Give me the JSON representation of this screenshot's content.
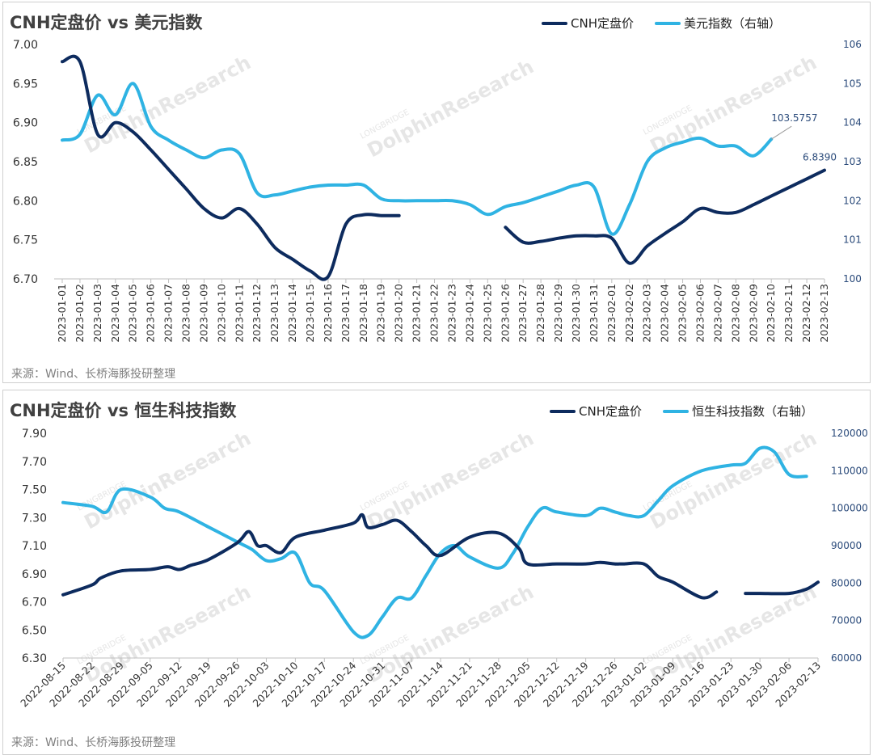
{
  "colors": {
    "cnh": "#0d2b5e",
    "index": "#2fb3e3",
    "axis_right": "#2a4a7a"
  },
  "watermark": {
    "main": "DolphinResearch",
    "small": "LONGBRIDGE"
  },
  "chart_data": [
    {
      "type": "line",
      "title": "CNH定盘价 vs 美元指数",
      "source": "来源：Wind、长桥海豚投研整理",
      "legend": {
        "placement": "top-right",
        "entries": [
          "CNH定盘价",
          "美元指数（右轴）"
        ]
      },
      "grid": false,
      "left_axis": {
        "ylim": [
          6.7,
          7.0
        ],
        "ticks": [
          "6.70",
          "6.75",
          "6.80",
          "6.85",
          "6.90",
          "6.95",
          "7.00"
        ]
      },
      "right_axis": {
        "ylim": [
          100,
          106
        ],
        "ticks": [
          "100",
          "101",
          "102",
          "103",
          "104",
          "105",
          "106"
        ]
      },
      "x_categories": [
        "2023-01-01",
        "2023-01-02",
        "2023-01-03",
        "2023-01-04",
        "2023-01-05",
        "2023-01-06",
        "2023-01-07",
        "2023-01-08",
        "2023-01-09",
        "2023-01-10",
        "2023-01-11",
        "2023-01-12",
        "2023-01-13",
        "2023-01-14",
        "2023-01-15",
        "2023-01-16",
        "2023-01-17",
        "2023-01-18",
        "2023-01-19",
        "2023-01-20",
        "2023-01-21",
        "2023-01-22",
        "2023-01-23",
        "2023-01-24",
        "2023-01-25",
        "2023-01-26",
        "2023-01-27",
        "2023-01-28",
        "2023-01-29",
        "2023-01-30",
        "2023-01-31",
        "2023-02-01",
        "2023-02-02",
        "2023-02-03",
        "2023-02-04",
        "2023-02-05",
        "2023-02-06",
        "2023-02-07",
        "2023-02-08",
        "2023-02-09",
        "2023-02-10",
        "2023-02-11",
        "2023-02-12",
        "2023-02-13"
      ],
      "series": [
        {
          "name": "CNH定盘价",
          "axis": "left",
          "color_key": "cnh",
          "values": [
            6.978,
            6.978,
            6.885,
            6.9,
            6.888,
            6.865,
            6.84,
            6.815,
            6.79,
            6.778,
            6.79,
            6.77,
            6.74,
            6.725,
            6.71,
            6.703,
            6.77,
            6.782,
            6.781,
            6.781,
            null,
            null,
            null,
            null,
            null,
            6.766,
            6.747,
            6.748,
            6.752,
            6.755,
            6.755,
            6.752,
            6.72,
            6.742,
            6.758,
            6.773,
            6.79,
            6.785,
            6.785,
            6.795,
            6.806,
            6.817,
            6.828,
            6.839
          ],
          "end_label": "6.8390"
        },
        {
          "name": "美元指数（右轴）",
          "axis": "right",
          "color_key": "index",
          "values": [
            103.55,
            103.7,
            104.7,
            104.2,
            105.0,
            103.9,
            103.55,
            103.3,
            103.1,
            103.3,
            103.2,
            102.2,
            102.15,
            102.25,
            102.35,
            102.4,
            102.4,
            102.4,
            102.05,
            102.0,
            102.0,
            102.0,
            102.0,
            101.9,
            101.65,
            101.85,
            101.95,
            102.1,
            102.25,
            102.4,
            102.35,
            101.15,
            101.9,
            103.0,
            103.35,
            103.5,
            103.6,
            103.4,
            103.4,
            103.15,
            103.5757,
            null,
            null,
            null
          ],
          "end_label": "103.5757"
        }
      ]
    },
    {
      "type": "line",
      "title": "CNH定盘价 vs 恒生科技指数",
      "source": "来源：Wind、长桥海豚投研整理",
      "legend": {
        "placement": "top-right",
        "entries": [
          "CNH定盘价",
          "恒生科技指数（右轴）"
        ]
      },
      "grid": false,
      "left_axis": {
        "ylim": [
          6.3,
          7.9
        ],
        "ticks": [
          "6.30",
          "6.50",
          "6.70",
          "6.90",
          "7.10",
          "7.30",
          "7.50",
          "7.70",
          "7.90"
        ]
      },
      "right_axis": {
        "ylim": [
          60000,
          120000
        ],
        "ticks": [
          "60000",
          "70000",
          "80000",
          "90000",
          "100000",
          "110000",
          "120000"
        ]
      },
      "x_ticks": [
        "2022-08-15",
        "2022-08-22",
        "2022-08-29",
        "2022-09-05",
        "2022-09-12",
        "2022-09-19",
        "2022-09-26",
        "2022-10-03",
        "2022-10-10",
        "2022-10-17",
        "2022-10-24",
        "2022-10-31",
        "2022-11-07",
        "2022-11-14",
        "2022-11-21",
        "2022-11-28",
        "2022-12-05",
        "2022-12-12",
        "2022-12-19",
        "2022-12-26",
        "2023-01-02",
        "2023-01-09",
        "2023-01-16",
        "2023-01-23",
        "2023-01-30",
        "2023-02-06",
        "2023-02-13"
      ],
      "series": [
        {
          "name": "CNH定盘价",
          "axis": "left",
          "color_key": "cnh",
          "weeks": [
            0,
            1,
            1.3,
            2,
            3,
            3.6,
            4,
            4.4,
            5,
            6,
            6.4,
            6.7,
            7,
            7.5,
            8,
            9,
            10,
            10.3,
            10.5,
            11,
            11.5,
            12,
            12.5,
            13,
            14,
            15,
            15.7,
            16,
            17,
            18,
            18.5,
            19,
            19.3,
            20,
            20.5,
            21,
            22,
            22.5,
            23,
            23.5,
            24,
            25,
            25.6,
            26
          ],
          "values": [
            6.75,
            6.82,
            6.87,
            6.92,
            6.93,
            6.95,
            6.93,
            6.96,
            7.0,
            7.12,
            7.2,
            7.1,
            7.1,
            7.05,
            7.16,
            7.21,
            7.26,
            7.32,
            7.23,
            7.25,
            7.28,
            7.2,
            7.1,
            7.03,
            7.16,
            7.19,
            7.08,
            6.97,
            6.97,
            6.97,
            6.98,
            6.97,
            6.97,
            6.97,
            6.88,
            6.84,
            6.73,
            6.77,
            null,
            6.76,
            6.76,
            6.76,
            6.79,
            6.84
          ]
        },
        {
          "name": "恒生科技指数（右轴）",
          "axis": "right",
          "color_key": "index",
          "weeks": [
            0,
            1,
            1.5,
            2,
            3,
            3.5,
            4,
            5,
            6,
            6.5,
            7,
            7.5,
            8,
            8.5,
            9,
            10,
            10.5,
            11,
            11.5,
            12,
            12.5,
            13,
            13.5,
            14,
            15,
            15.5,
            16,
            16.5,
            17,
            18,
            18.5,
            19,
            19.5,
            20,
            20.5,
            21,
            22,
            23,
            23.5,
            24,
            24.5,
            25,
            25.6
          ],
          "values": [
            101500,
            100500,
            99000,
            105000,
            103000,
            100000,
            99000,
            95000,
            91000,
            89000,
            86000,
            86500,
            88000,
            80000,
            78000,
            67000,
            66000,
            71000,
            76000,
            76000,
            82000,
            88000,
            90000,
            87000,
            84000,
            88000,
            95000,
            100000,
            99000,
            98000,
            100000,
            99000,
            98000,
            98000,
            102000,
            106000,
            110000,
            111500,
            112000,
            116000,
            115000,
            109000,
            108500
          ]
        }
      ]
    }
  ]
}
